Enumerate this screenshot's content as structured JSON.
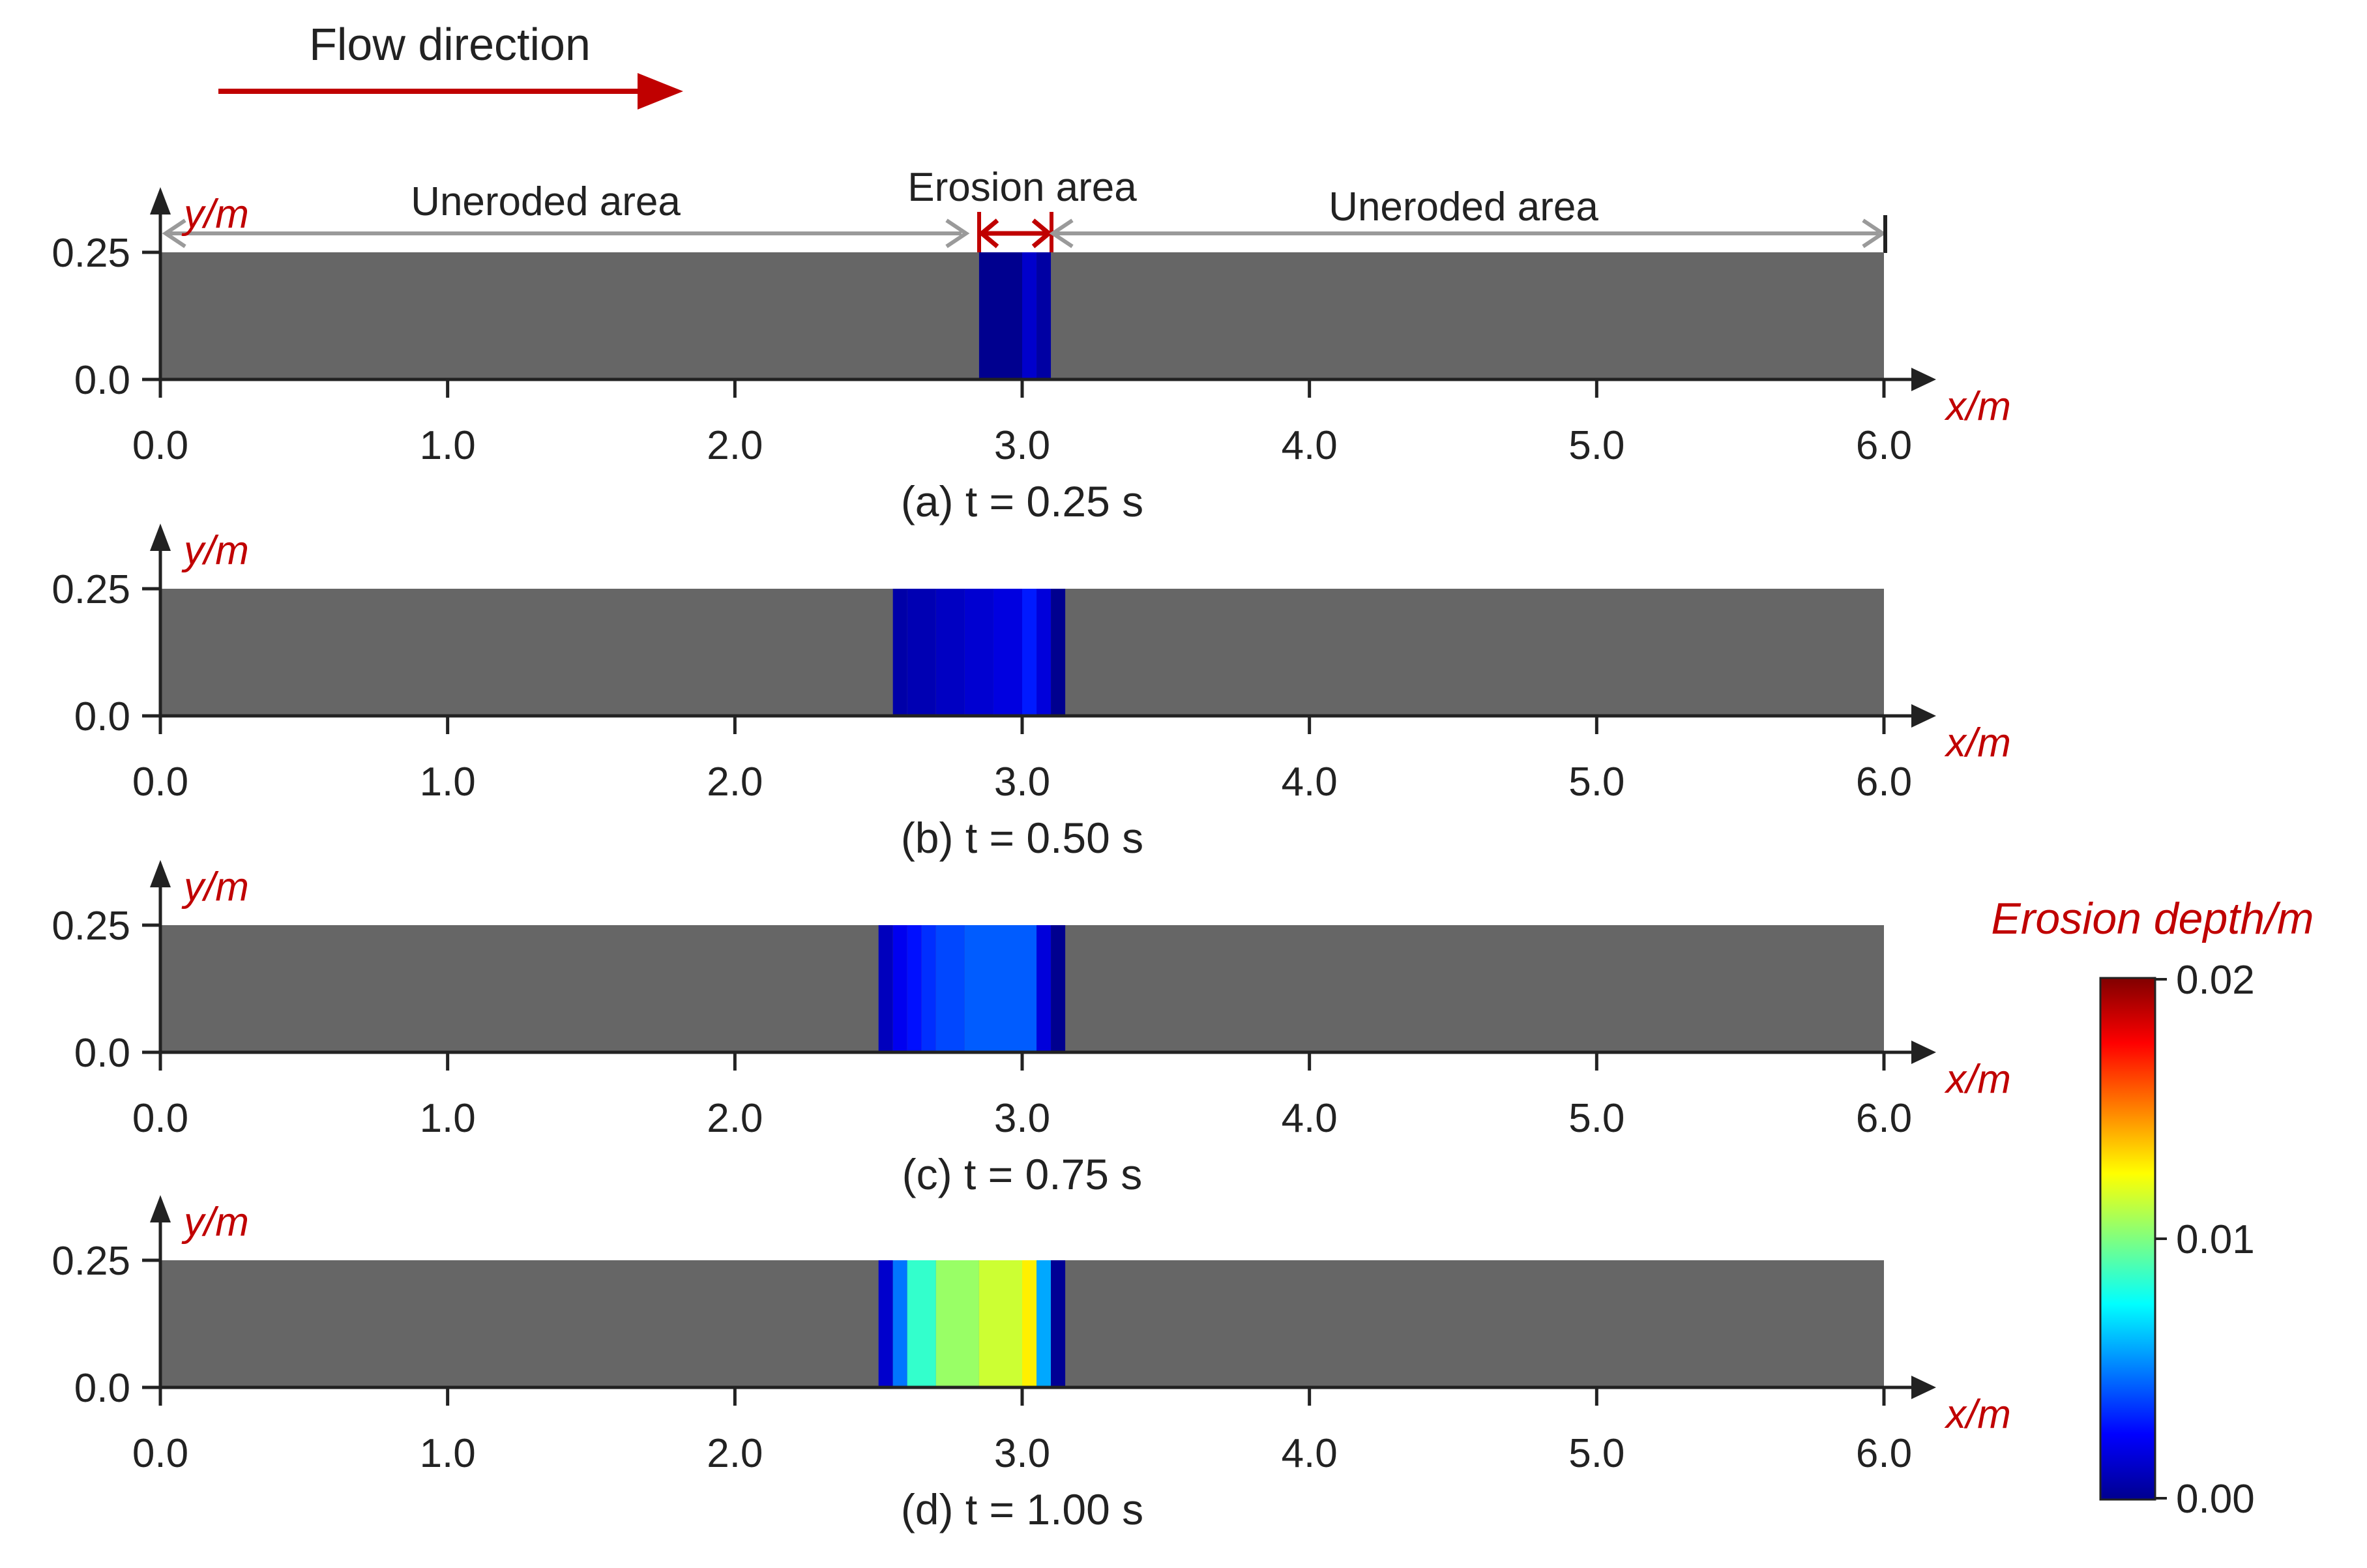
{
  "flow_label": "Flow direction",
  "colors": {
    "domain": "#666666",
    "axis": "#222222",
    "accent": "#c00000",
    "annotation_arrow": "#9a9a9a"
  },
  "annotations": {
    "left": "Uneroded area",
    "center": "Erosion area",
    "right": "Uneroded area"
  },
  "colorbar": {
    "title": "Erosion depth/m",
    "colormap": "jet",
    "min": 0.0,
    "max": 0.02,
    "ticks": [
      "0.02",
      "0.01",
      "0.00"
    ]
  },
  "chart_data": [
    {
      "type": "heatmap",
      "caption": "(a) t = 0.25 s",
      "xlabel": "x/m",
      "ylabel": "y/m",
      "xlim": [
        0.0,
        6.0
      ],
      "ylim": [
        0.0,
        0.25
      ],
      "xticks": [
        "0.0",
        "1.0",
        "2.0",
        "3.0",
        "4.0",
        "5.0",
        "6.0"
      ],
      "yticks": [
        "0.0",
        "0.25"
      ],
      "erosion_columns": [
        {
          "x0": 2.85,
          "x1": 3.0,
          "depth": 0.0003
        },
        {
          "x0": 3.0,
          "x1": 3.05,
          "depth": 0.0015
        },
        {
          "x0": 3.05,
          "x1": 3.1,
          "depth": 0.0007
        }
      ]
    },
    {
      "type": "heatmap",
      "caption": "(b) t = 0.50 s",
      "xlabel": "x/m",
      "ylabel": "y/m",
      "xlim": [
        0.0,
        6.0
      ],
      "ylim": [
        0.0,
        0.25
      ],
      "xticks": [
        "0.0",
        "1.0",
        "2.0",
        "3.0",
        "4.0",
        "5.0",
        "6.0"
      ],
      "yticks": [
        "0.0",
        "0.25"
      ],
      "erosion_columns": [
        {
          "x0": 2.55,
          "x1": 2.6,
          "depth": 0.0008
        },
        {
          "x0": 2.6,
          "x1": 2.7,
          "depth": 0.001
        },
        {
          "x0": 2.7,
          "x1": 2.8,
          "depth": 0.0013
        },
        {
          "x0": 2.8,
          "x1": 2.9,
          "depth": 0.0016
        },
        {
          "x0": 2.9,
          "x1": 3.0,
          "depth": 0.0019
        },
        {
          "x0": 3.0,
          "x1": 3.05,
          "depth": 0.003
        },
        {
          "x0": 3.05,
          "x1": 3.1,
          "depth": 0.0018
        },
        {
          "x0": 3.1,
          "x1": 3.15,
          "depth": 0.0003
        }
      ]
    },
    {
      "type": "heatmap",
      "caption": "(c) t = 0.75 s",
      "xlabel": "x/m",
      "ylabel": "y/m",
      "xlim": [
        0.0,
        6.0
      ],
      "ylim": [
        0.0,
        0.25
      ],
      "xticks": [
        "0.0",
        "1.0",
        "2.0",
        "3.0",
        "4.0",
        "5.0",
        "6.0"
      ],
      "yticks": [
        "0.0",
        "0.25"
      ],
      "erosion_columns": [
        {
          "x0": 2.5,
          "x1": 2.55,
          "depth": 0.0012
        },
        {
          "x0": 2.55,
          "x1": 2.6,
          "depth": 0.0022
        },
        {
          "x0": 2.6,
          "x1": 2.65,
          "depth": 0.0028
        },
        {
          "x0": 2.65,
          "x1": 2.7,
          "depth": 0.0034
        },
        {
          "x0": 2.7,
          "x1": 2.8,
          "depth": 0.0039
        },
        {
          "x0": 2.8,
          "x1": 3.05,
          "depth": 0.0043
        },
        {
          "x0": 3.05,
          "x1": 3.1,
          "depth": 0.0018
        },
        {
          "x0": 3.1,
          "x1": 3.15,
          "depth": 0.0003
        }
      ]
    },
    {
      "type": "heatmap",
      "caption": "(d) t = 1.00 s",
      "xlabel": "x/m",
      "ylabel": "y/m",
      "xlim": [
        0.0,
        6.0
      ],
      "ylim": [
        0.0,
        0.25
      ],
      "xticks": [
        "0.0",
        "1.0",
        "2.0",
        "3.0",
        "4.0",
        "5.0",
        "6.0"
      ],
      "yticks": [
        "0.0",
        "0.25"
      ],
      "erosion_columns": [
        {
          "x0": 2.5,
          "x1": 2.55,
          "depth": 0.0015
        },
        {
          "x0": 2.55,
          "x1": 2.6,
          "depth": 0.0048
        },
        {
          "x0": 2.6,
          "x1": 2.7,
          "depth": 0.0085
        },
        {
          "x0": 2.7,
          "x1": 2.85,
          "depth": 0.0105
        },
        {
          "x0": 2.85,
          "x1": 3.0,
          "depth": 0.0115
        },
        {
          "x0": 3.0,
          "x1": 3.05,
          "depth": 0.0128
        },
        {
          "x0": 3.05,
          "x1": 3.1,
          "depth": 0.0058
        },
        {
          "x0": 3.1,
          "x1": 3.15,
          "depth": 0.0004
        }
      ]
    }
  ]
}
